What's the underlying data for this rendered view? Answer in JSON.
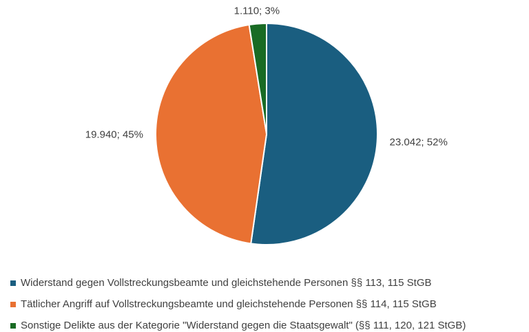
{
  "chart_data": {
    "type": "pie",
    "categories": [
      "Widerstand gegen Vollstreckungsbeamte und gleichstehende Personen §§ 113, 115 StGB",
      "Tätlicher Angriff auf Vollstreckungsbeamte und gleichstehende Personen §§ 114, 115 StGB",
      "Sonstige Delikte aus der Kategorie \"Widerstand gegen die Staatsgewalt\" (§§ 111, 120, 121 StGB)"
    ],
    "values": [
      23042,
      19940,
      1110
    ],
    "value_labels": [
      "23.042; 52%",
      "19.940; 45%",
      "1.110; 3%"
    ],
    "colors": [
      "#1a5e80",
      "#e97132",
      "#196b24"
    ],
    "legend": "bottom"
  }
}
